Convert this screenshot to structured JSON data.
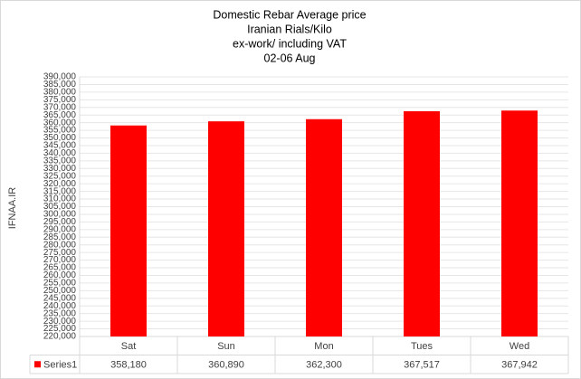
{
  "chart_data": {
    "type": "bar",
    "title": "Domestic Rebar Average  price",
    "subtitle": [
      "Iranian Rials/Kilo",
      "ex-work/ including VAT",
      "02-06  Aug"
    ],
    "y_label": "IFNAA.IR",
    "categories": [
      "Sat",
      "Sun",
      "Mon",
      "Tues",
      "Wed"
    ],
    "series": [
      {
        "name": "Series1",
        "color": "#ff0000",
        "values": [
          358180,
          360890,
          362300,
          367517,
          367942
        ],
        "value_labels": [
          "358,180",
          "360,890",
          "362,300",
          "367,517",
          "367,942"
        ]
      }
    ],
    "ylim": [
      220000,
      390000
    ],
    "yticks": [
      {
        "value": 220000,
        "label": "220,000"
      },
      {
        "value": 225000,
        "label": "225,000"
      },
      {
        "value": 230000,
        "label": "230,000"
      },
      {
        "value": 235000,
        "label": "235,000"
      },
      {
        "value": 240000,
        "label": "240,000"
      },
      {
        "value": 245000,
        "label": "245,000"
      },
      {
        "value": 250000,
        "label": "250,000"
      },
      {
        "value": 255000,
        "label": "255,000"
      },
      {
        "value": 260000,
        "label": "260,000"
      },
      {
        "value": 265000,
        "label": "265,000"
      },
      {
        "value": 270000,
        "label": "270,000"
      },
      {
        "value": 275000,
        "label": "275,000"
      },
      {
        "value": 280000,
        "label": "280,000"
      },
      {
        "value": 285000,
        "label": "285,000"
      },
      {
        "value": 290000,
        "label": "290,000"
      },
      {
        "value": 295000,
        "label": "295,000"
      },
      {
        "value": 300000,
        "label": "300,000"
      },
      {
        "value": 305000,
        "label": "305,000"
      },
      {
        "value": 310000,
        "label": "310,000"
      },
      {
        "value": 315000,
        "label": "315,000"
      },
      {
        "value": 320000,
        "label": "320,000"
      },
      {
        "value": 325000,
        "label": "325,000"
      },
      {
        "value": 330000,
        "label": "330,000"
      },
      {
        "value": 335000,
        "label": "335,000"
      },
      {
        "value": 340000,
        "label": "340,000"
      },
      {
        "value": 345000,
        "label": "345,000"
      },
      {
        "value": 350000,
        "label": "350,000"
      },
      {
        "value": 355000,
        "label": "355,000"
      },
      {
        "value": 360000,
        "label": "360,000"
      },
      {
        "value": 365000,
        "label": "365,000"
      },
      {
        "value": 370000,
        "label": "370,000"
      },
      {
        "value": 375000,
        "label": "375,000"
      },
      {
        "value": 380000,
        "label": "380,000"
      },
      {
        "value": 385000,
        "label": "385,000"
      },
      {
        "value": 390000,
        "label": "390,000"
      }
    ],
    "grid": true
  }
}
